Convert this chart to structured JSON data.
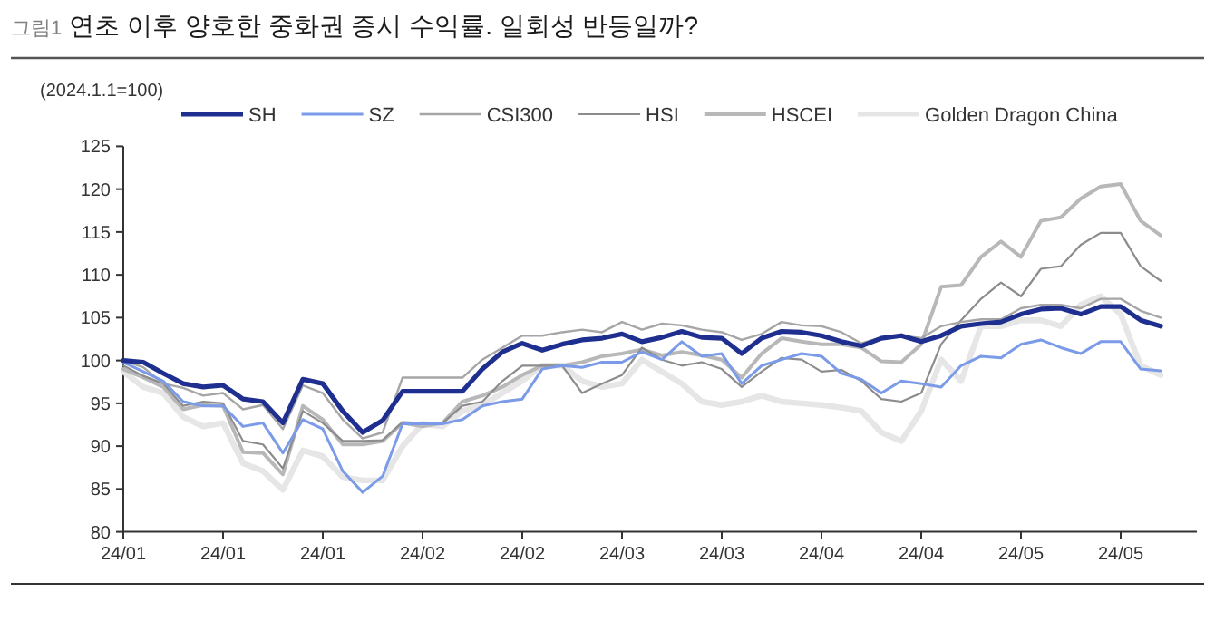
{
  "chart_data": {
    "type": "line",
    "title": "연초 이후 양호한 중화권 증시 수익률. 일회성 반등일까?",
    "annotations": [
      "그림1"
    ],
    "ylabel": "(2024.1.1=100)",
    "categories": [
      "24/01",
      null,
      null,
      null,
      null,
      "24/01",
      null,
      null,
      null,
      null,
      "24/01",
      null,
      null,
      null,
      null,
      "24/02",
      null,
      null,
      null,
      null,
      "24/02",
      null,
      null,
      null,
      null,
      "24/03",
      null,
      null,
      null,
      null,
      "24/03",
      null,
      null,
      null,
      null,
      "24/04",
      null,
      null,
      null,
      null,
      "24/04",
      null,
      null,
      null,
      null,
      "24/05",
      null,
      null,
      null,
      null,
      "24/05",
      null,
      null
    ],
    "series": [
      {
        "name": "SH",
        "color": "#1f2f8f",
        "values": [
          100,
          99.8,
          98.5,
          97.3,
          96.9,
          97.1,
          95.5,
          95.2,
          92.7,
          97.8,
          97.3,
          94.1,
          91.6,
          93.0,
          96.4,
          96.4,
          96.4,
          96.4,
          99.0,
          101.0,
          102.0,
          101.2,
          101.9,
          102.4,
          102.6,
          103.1,
          102.2,
          102.7,
          103.4,
          102.7,
          102.6,
          100.8,
          102.6,
          103.4,
          103.3,
          102.9,
          102.2,
          101.7,
          102.6,
          102.9,
          102.2,
          102.9,
          104.0,
          104.3,
          104.5,
          105.4,
          106.0,
          106.1,
          105.4,
          106.3,
          106.3,
          104.7,
          104.0
        ]
      },
      {
        "name": "SZ",
        "color": "#7b9be8",
        "values": [
          99.8,
          98.7,
          97.6,
          95.2,
          94.7,
          94.7,
          92.3,
          92.7,
          89.2,
          93.1,
          92.0,
          87.1,
          84.6,
          86.5,
          92.6,
          92.6,
          92.6,
          93.1,
          94.7,
          95.2,
          95.5,
          99.0,
          99.4,
          99.2,
          99.8,
          99.8,
          101.0,
          100.1,
          102.2,
          100.5,
          100.8,
          97.3,
          99.4,
          100.1,
          100.8,
          100.5,
          98.5,
          97.8,
          96.2,
          97.6,
          97.3,
          96.9,
          99.4,
          100.5,
          100.3,
          101.9,
          102.4,
          101.5,
          100.8,
          102.2,
          102.2,
          99.0,
          98.8
        ]
      },
      {
        "name": "CSI300",
        "color": "#a6a6a6",
        "values": [
          100,
          99.2,
          97.3,
          96.8,
          95.9,
          96.2,
          94.3,
          94.8,
          92.0,
          97.1,
          96.2,
          93.1,
          90.9,
          91.6,
          98.0,
          98.0,
          98.0,
          98.0,
          100.1,
          101.5,
          102.9,
          102.9,
          103.3,
          103.6,
          103.3,
          104.5,
          103.6,
          104.3,
          104.1,
          103.6,
          103.3,
          102.4,
          103.1,
          104.5,
          104.1,
          104.0,
          103.3,
          102.0,
          102.7,
          102.9,
          102.6,
          104.0,
          104.5,
          104.8,
          104.8,
          106.1,
          106.5,
          106.5,
          106.1,
          107.2,
          107.2,
          105.8,
          105.0
        ]
      },
      {
        "name": "HSI",
        "color": "#8c8c8c",
        "values": [
          99.4,
          98.2,
          97.3,
          94.7,
          95.2,
          95.0,
          90.6,
          90.2,
          87.4,
          94.1,
          92.7,
          90.6,
          90.6,
          90.7,
          92.8,
          92.7,
          92.7,
          94.7,
          95.2,
          97.6,
          99.4,
          99.4,
          99.4,
          96.2,
          97.3,
          98.3,
          101.5,
          100.1,
          99.4,
          99.8,
          99.0,
          96.9,
          98.7,
          100.3,
          100.1,
          98.7,
          98.9,
          97.6,
          95.5,
          95.2,
          96.2,
          101.9,
          104.7,
          107.2,
          109.1,
          107.5,
          110.7,
          111.0,
          113.5,
          114.9,
          114.9,
          111.0,
          109.3
        ]
      },
      {
        "name": "HSCEI",
        "color": "#b8b8b8",
        "values": [
          99.0,
          98.0,
          96.9,
          94.3,
          94.8,
          94.7,
          89.3,
          89.2,
          86.7,
          94.7,
          93.1,
          90.2,
          90.2,
          90.6,
          92.7,
          92.3,
          92.7,
          95.2,
          95.9,
          96.9,
          98.3,
          99.4,
          99.4,
          99.8,
          100.5,
          100.8,
          101.3,
          100.6,
          101.0,
          100.6,
          100.1,
          98.0,
          100.8,
          102.6,
          102.2,
          101.9,
          101.9,
          101.5,
          99.9,
          99.8,
          101.9,
          108.6,
          108.8,
          112.1,
          113.9,
          112.1,
          116.3,
          116.7,
          118.9,
          120.3,
          120.6,
          116.3,
          114.6
        ]
      },
      {
        "name": "Golden Dragon China",
        "color": "#e6e6e6",
        "values": [
          98.7,
          96.9,
          96.2,
          93.4,
          92.3,
          92.7,
          88.0,
          87.1,
          84.9,
          89.5,
          88.8,
          86.4,
          86.0,
          86.0,
          90.0,
          92.6,
          92.3,
          94.1,
          94.8,
          96.2,
          97.6,
          99.4,
          99.4,
          97.6,
          96.9,
          97.3,
          100.1,
          98.7,
          97.3,
          95.2,
          94.8,
          95.2,
          95.9,
          95.2,
          95.0,
          94.8,
          94.5,
          94.1,
          91.6,
          90.6,
          94.1,
          100.1,
          97.6,
          104.0,
          104.0,
          104.7,
          104.7,
          104.0,
          106.5,
          107.5,
          105.4,
          99.4,
          98.3
        ]
      }
    ],
    "ylim": [
      80,
      125
    ],
    "yticks": [
      80,
      85,
      90,
      95,
      100,
      105,
      110,
      115,
      120,
      125
    ],
    "grid": false,
    "legend": "top",
    "marker": "none",
    "line_style": "solid"
  }
}
